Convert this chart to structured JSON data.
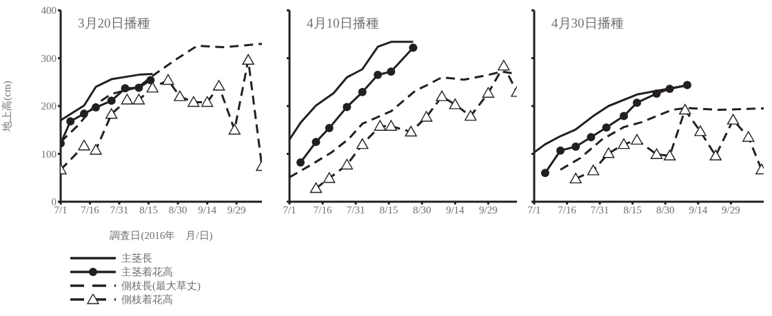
{
  "chart_data": [
    {
      "type": "line",
      "title": "3月20日播種",
      "xlabel": "調査日(2016年　月/日)",
      "ylabel": "地上高(cm)",
      "legend": "bottom left",
      "xlim": [
        "--07-01",
        "--10-12"
      ],
      "xticks": [
        {
          "value": "--07-01",
          "label": "7/1"
        },
        {
          "value": "--07-16",
          "label": "7/16"
        },
        {
          "value": "--07-31",
          "label": "7/31"
        },
        {
          "value": "--08-15",
          "label": "8/15"
        },
        {
          "value": "--08-30",
          "label": "8/30"
        },
        {
          "value": "--09-14",
          "label": "9/14"
        },
        {
          "value": "--09-29",
          "label": "9/29"
        }
      ],
      "ylim": [
        0,
        400
      ],
      "yticks": [
        0,
        100,
        200,
        300,
        400
      ],
      "series": [
        {
          "name": "主茎長",
          "color": "#231f20",
          "line_style": "solid",
          "marker": "none",
          "x": [
            "--07-01",
            "--07-13",
            "--07-19",
            "--07-27",
            "--08-11",
            "--08-17"
          ],
          "values": [
            170,
            201,
            240,
            256,
            266,
            267
          ]
        },
        {
          "name": "主茎着花高",
          "color": "#231f20",
          "line_style": "solid",
          "marker": "circle",
          "x": [
            "--07-01",
            "--07-06",
            "--07-13",
            "--07-19",
            "--07-27",
            "--08-03",
            "--08-10",
            "--08-16"
          ],
          "values": [
            122,
            168,
            184,
            197,
            211,
            237,
            238,
            254
          ]
        },
        {
          "name": "側枝長(最大草丈)",
          "color": "#231f20",
          "line_style": "dashed",
          "marker": "none",
          "x": [
            "--07-01",
            "--07-10",
            "--07-19",
            "--07-27",
            "--08-10",
            "--08-17",
            "--08-30",
            "--09-09",
            "--09-22",
            "--10-01",
            "--10-12"
          ],
          "values": [
            125,
            160,
            204,
            225,
            240,
            263,
            300,
            326,
            323,
            326,
            330
          ]
        },
        {
          "name": "側枝着花高",
          "color": "#231f20",
          "line_style": "dashed",
          "marker": "triangle",
          "x": [
            "--07-01",
            "--07-13",
            "--07-19",
            "--07-27",
            "--08-04",
            "--08-10",
            "--08-17",
            "--08-25",
            "--08-31",
            "--09-07",
            "--09-14",
            "--09-20",
            "--09-28",
            "--10-05",
            "--10-12"
          ],
          "values": [
            67,
            117,
            108,
            183,
            213,
            213,
            238,
            254,
            220,
            208,
            208,
            242,
            150,
            296,
            74
          ]
        }
      ]
    },
    {
      "type": "line",
      "title": "4月10日播種",
      "tick_labels": "x",
      "xlim": [
        "--07-01",
        "--10-12"
      ],
      "xticks": [
        {
          "value": "--07-01",
          "label": "7/1"
        },
        {
          "value": "--07-16",
          "label": "7/16"
        },
        {
          "value": "--07-31",
          "label": "7/31"
        },
        {
          "value": "--08-15",
          "label": "8/15"
        },
        {
          "value": "--08-30",
          "label": "8/30"
        },
        {
          "value": "--09-14",
          "label": "9/14"
        },
        {
          "value": "--09-29",
          "label": "9/29"
        }
      ],
      "ylim": [
        0,
        400
      ],
      "yticks": [
        0,
        100,
        200,
        300,
        400
      ],
      "series": [
        {
          "color": "#231f20",
          "line_style": "solid",
          "marker": "none",
          "x": [
            "--07-01",
            "--07-06",
            "--07-13",
            "--07-21",
            "--07-27",
            "--08-03",
            "--08-10",
            "--08-16",
            "--08-26"
          ],
          "values": [
            130,
            165,
            201,
            227,
            260,
            277,
            324,
            334,
            334
          ]
        },
        {
          "color": "#231f20",
          "line_style": "solid",
          "marker": "circle",
          "x": [
            "--07-06",
            "--07-13",
            "--07-19",
            "--07-27",
            "--08-03",
            "--08-10",
            "--08-16",
            "--08-26"
          ],
          "values": [
            82,
            125,
            154,
            198,
            229,
            265,
            272,
            322
          ]
        },
        {
          "color": "#231f20",
          "line_style": "dashed",
          "marker": "none",
          "x": [
            "--07-01",
            "--07-10",
            "--07-20",
            "--07-28",
            "--08-03",
            "--08-16",
            "--08-27",
            "--09-01",
            "--09-08",
            "--09-18",
            "--09-29",
            "--10-05",
            "--10-12"
          ],
          "values": [
            51,
            75,
            103,
            132,
            163,
            189,
            232,
            243,
            260,
            255,
            265,
            272,
            267
          ]
        },
        {
          "color": "#231f20",
          "line_style": "dashed",
          "marker": "triangle",
          "x": [
            "--07-13",
            "--07-19",
            "--07-27",
            "--08-03",
            "--08-11",
            "--08-16",
            "--08-25",
            "--09-01",
            "--09-08",
            "--09-14",
            "--09-21",
            "--09-29",
            "--10-06",
            "--10-12"
          ],
          "values": [
            28,
            49,
            77,
            120,
            158,
            158,
            146,
            177,
            220,
            203,
            179,
            227,
            284,
            229
          ]
        }
      ]
    },
    {
      "type": "line",
      "title": "4月30日播種",
      "tick_labels": "x",
      "xlim": [
        "--07-01",
        "--10-14"
      ],
      "xticks": [
        {
          "value": "--07-01",
          "label": "7/1"
        },
        {
          "value": "--07-16",
          "label": "7/16"
        },
        {
          "value": "--07-31",
          "label": "7/31"
        },
        {
          "value": "--08-15",
          "label": "8/15"
        },
        {
          "value": "--08-30",
          "label": "8/30"
        },
        {
          "value": "--09-14",
          "label": "9/14"
        },
        {
          "value": "--09-29",
          "label": "9/29"
        }
      ],
      "ylim": [
        0,
        400
      ],
      "yticks": [
        0,
        100,
        200,
        300,
        400
      ],
      "series": [
        {
          "color": "#231f20",
          "line_style": "solid",
          "marker": "none",
          "x": [
            "--07-01",
            "--07-06",
            "--07-13",
            "--07-20",
            "--07-28",
            "--08-04",
            "--08-17",
            "--08-25",
            "--09-03",
            "--09-09"
          ],
          "values": [
            103,
            120,
            137,
            151,
            179,
            200,
            224,
            231,
            238,
            243
          ]
        },
        {
          "color": "#231f20",
          "line_style": "solid",
          "marker": "circle",
          "x": [
            "--07-06",
            "--07-13",
            "--07-20",
            "--07-27",
            "--08-03",
            "--08-11",
            "--08-17",
            "--08-26",
            "--09-01",
            "--09-09"
          ],
          "values": [
            60,
            107,
            115,
            135,
            155,
            179,
            207,
            226,
            236,
            244
          ]
        },
        {
          "color": "#231f20",
          "line_style": "dashed",
          "marker": "none",
          "x": [
            "--07-13",
            "--07-22",
            "--08-01",
            "--08-11",
            "--08-19",
            "--09-02",
            "--09-09",
            "--09-23",
            "--10-14"
          ],
          "values": [
            67,
            91,
            130,
            156,
            166,
            192,
            196,
            192,
            195
          ]
        },
        {
          "color": "#231f20",
          "line_style": "dashed",
          "marker": "triangle",
          "x": [
            "--07-20",
            "--07-28",
            "--08-04",
            "--08-11",
            "--08-17",
            "--08-26",
            "--09-01",
            "--09-08",
            "--09-15",
            "--09-22",
            "--09-30",
            "--10-07",
            "--10-13"
          ],
          "values": [
            48,
            65,
            101,
            120,
            129,
            99,
            96,
            192,
            147,
            96,
            171,
            135,
            67
          ]
        }
      ]
    }
  ]
}
